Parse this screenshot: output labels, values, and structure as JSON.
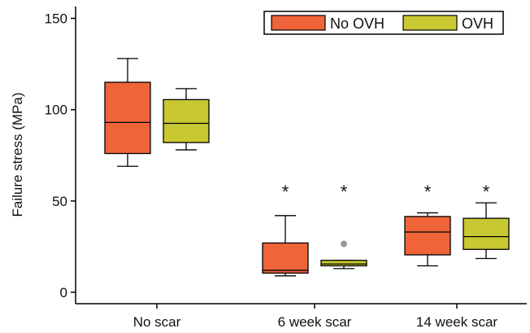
{
  "chart_data": {
    "type": "box",
    "ylabel": "Failure stress (MPa)",
    "xlabel": "",
    "ylim": [
      0,
      155
    ],
    "yticks": [
      0,
      50,
      100,
      150
    ],
    "categories": [
      "No scar",
      "6 week scar",
      "14 week scar"
    ],
    "legend": {
      "position": "top-right"
    },
    "series": [
      {
        "name": "No OVH",
        "color": "#F0643A",
        "boxes": [
          {
            "whisker_low": 69,
            "q1": 76,
            "median": 93,
            "q3": 115,
            "whisker_high": 128,
            "outliers": [],
            "annotation": ""
          },
          {
            "whisker_low": 9,
            "q1": 10.5,
            "median": 12,
            "q3": 27,
            "whisker_high": 42,
            "outliers": [],
            "annotation": "*"
          },
          {
            "whisker_low": 14.5,
            "q1": 20.5,
            "median": 33,
            "q3": 41.5,
            "whisker_high": 43.5,
            "outliers": [],
            "annotation": "*"
          }
        ]
      },
      {
        "name": "OVH",
        "color": "#C8C832",
        "boxes": [
          {
            "whisker_low": 78,
            "q1": 82,
            "median": 92.5,
            "q3": 105.5,
            "whisker_high": 111.5,
            "outliers": [],
            "annotation": ""
          },
          {
            "whisker_low": 13,
            "q1": 14.5,
            "median": 15.5,
            "q3": 17.5,
            "whisker_high": 17.5,
            "outliers": [
              26.5
            ],
            "annotation": "*"
          },
          {
            "whisker_low": 18.5,
            "q1": 23.5,
            "median": 30.5,
            "q3": 40.5,
            "whisker_high": 49,
            "outliers": [],
            "annotation": "*"
          }
        ]
      }
    ],
    "outlier_color": "#999999"
  }
}
